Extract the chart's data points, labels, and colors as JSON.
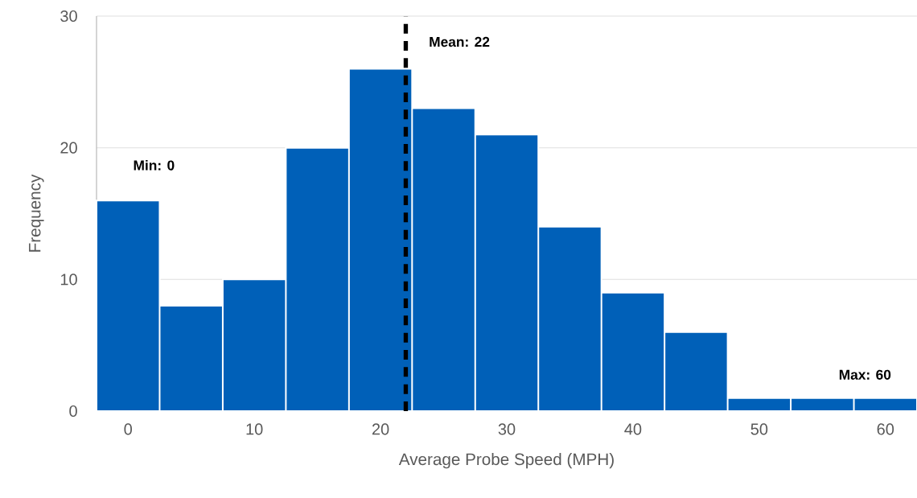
{
  "chart_data": {
    "type": "histogram",
    "xlabel": "Average Probe Speed (MPH)",
    "ylabel": "Frequency",
    "bins": [
      -2.5,
      2.5,
      7.5,
      12.5,
      17.5,
      22.5,
      27.5,
      32.5,
      37.5,
      42.5,
      47.5,
      52.5,
      57.5,
      62.5
    ],
    "values": [
      16,
      8,
      10,
      20,
      26,
      23,
      21,
      14,
      9,
      6,
      1,
      1,
      1
    ],
    "color": "#0060b8",
    "xlim": [
      -2.5,
      62.5
    ],
    "ylim": [
      0,
      30
    ],
    "xticks": [
      0,
      10,
      20,
      30,
      40,
      50,
      60
    ],
    "yticks": [
      0,
      10,
      20,
      30
    ],
    "grid": "y",
    "ref_lines": [
      {
        "axis": "x",
        "value": 22,
        "label": "Mean: 22",
        "color": "#000000",
        "line_style": "dashed"
      }
    ],
    "annotations": [
      "Min: 0",
      "Max: 60"
    ]
  }
}
